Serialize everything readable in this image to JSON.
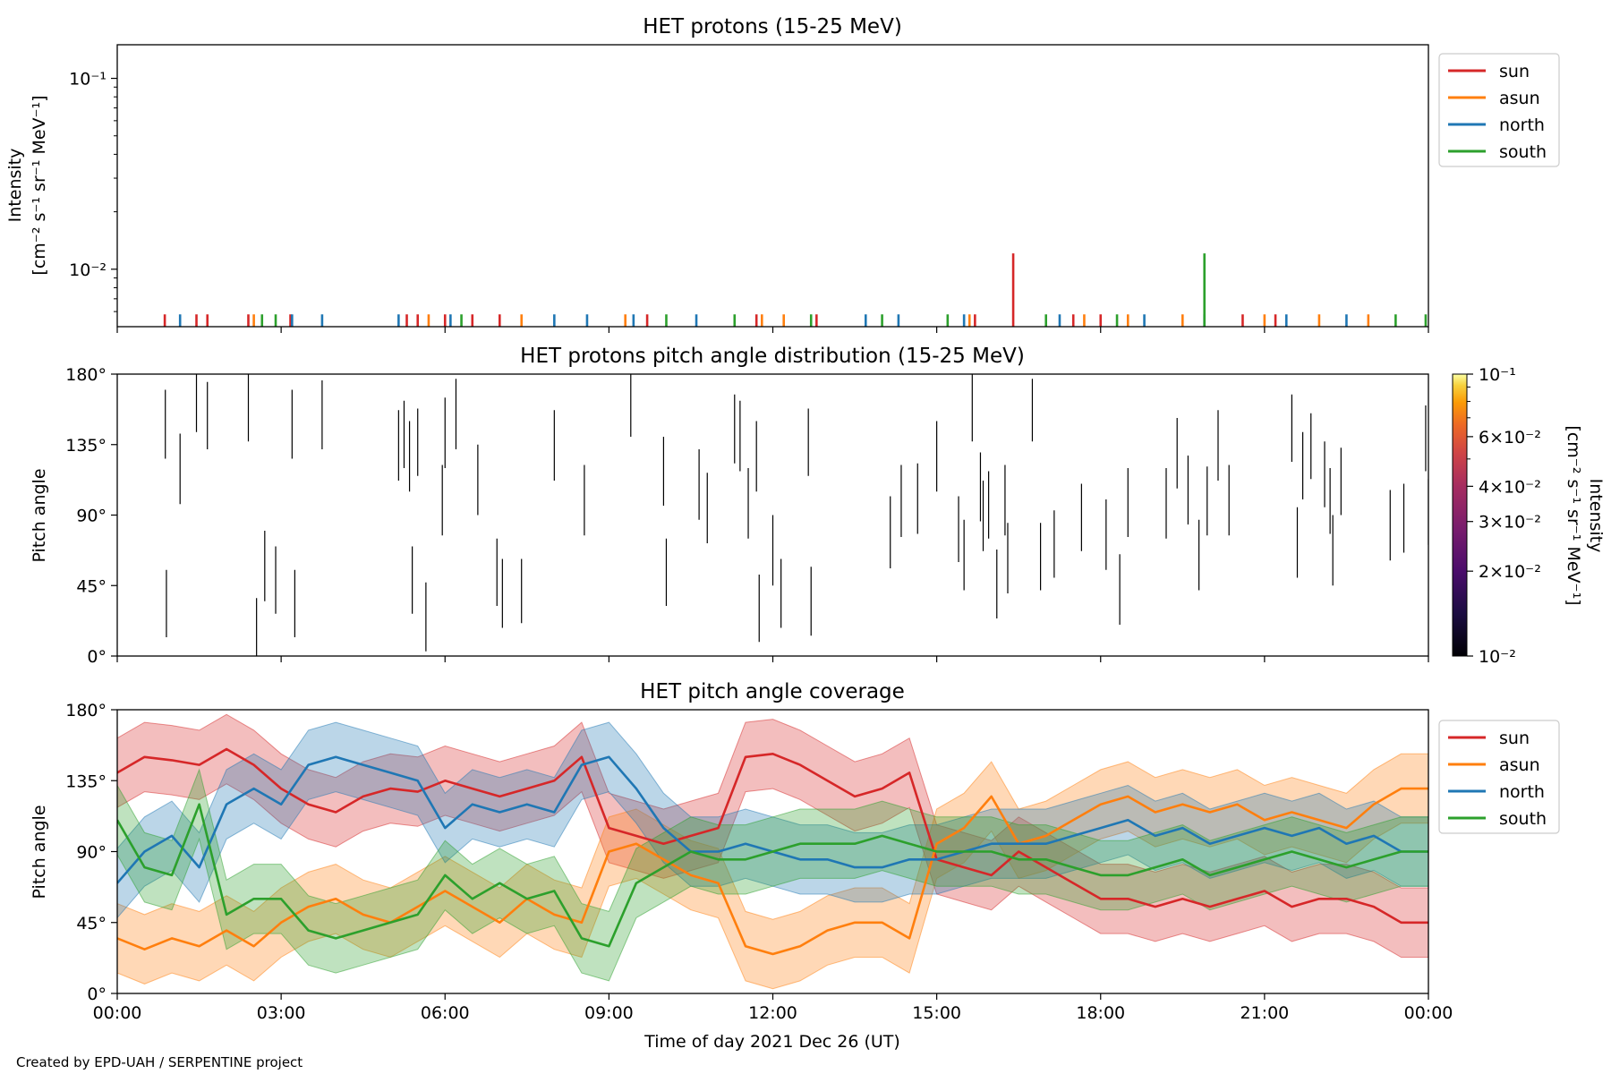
{
  "footer": "Created by EPD-UAH / SERPENTINE project",
  "x_axis": {
    "label": "Time of day 2021 Dec 26 (UT)",
    "ticks": [
      "00:00",
      "03:00",
      "06:00",
      "09:00",
      "12:00",
      "15:00",
      "18:00",
      "21:00",
      "00:00"
    ],
    "range_hours": [
      0,
      24
    ]
  },
  "colors": {
    "sun": "#d62728",
    "asun": "#ff7f0e",
    "north": "#1f77b4",
    "south": "#2ca02c"
  },
  "chart_data": [
    {
      "type": "line",
      "title": "HET protons (15-25 MeV)",
      "ylabel_line1": "Intensity",
      "ylabel_line2": "[cm⁻² s⁻¹ sr⁻¹ MeV⁻¹]",
      "yscale": "log",
      "ylim": [
        0.005,
        0.15
      ],
      "yticks": [
        "10⁻¹",
        "10⁻²"
      ],
      "legend": [
        "sun",
        "asun",
        "north",
        "south"
      ],
      "legend_position": "outside-right",
      "spikes_note": "sparse single-count spikes",
      "series": [
        {
          "name": "sun",
          "color": "#d62728",
          "peaks": [
            [
              0.87,
              0.0058
            ],
            [
              1.45,
              0.0058
            ],
            [
              1.65,
              0.0058
            ],
            [
              2.4,
              0.0058
            ],
            [
              3.17,
              0.0058
            ],
            [
              5.3,
              0.0058
            ],
            [
              5.5,
              0.0058
            ],
            [
              6.0,
              0.0058
            ],
            [
              6.5,
              0.0058
            ],
            [
              7.0,
              0.0058
            ],
            [
              9.7,
              0.0058
            ],
            [
              11.7,
              0.0058
            ],
            [
              12.8,
              0.0058
            ],
            [
              15.7,
              0.0058
            ],
            [
              16.4,
              0.0121
            ],
            [
              17.5,
              0.0058
            ],
            [
              18.0,
              0.0058
            ],
            [
              20.6,
              0.0058
            ],
            [
              21.2,
              0.0058
            ]
          ]
        },
        {
          "name": "asun",
          "color": "#ff7f0e",
          "peaks": [
            [
              2.5,
              0.0058
            ],
            [
              5.7,
              0.0058
            ],
            [
              7.4,
              0.0058
            ],
            [
              9.3,
              0.0058
            ],
            [
              11.8,
              0.0058
            ],
            [
              12.2,
              0.0058
            ],
            [
              15.6,
              0.0058
            ],
            [
              17.7,
              0.0058
            ],
            [
              18.5,
              0.0058
            ],
            [
              19.5,
              0.0058
            ],
            [
              21.0,
              0.0058
            ],
            [
              22.0,
              0.0058
            ],
            [
              22.9,
              0.0058
            ]
          ]
        },
        {
          "name": "north",
          "color": "#1f77b4",
          "peaks": [
            [
              1.15,
              0.0058
            ],
            [
              3.2,
              0.0058
            ],
            [
              3.75,
              0.0058
            ],
            [
              5.15,
              0.0058
            ],
            [
              6.1,
              0.0058
            ],
            [
              8.0,
              0.0058
            ],
            [
              8.6,
              0.0058
            ],
            [
              9.45,
              0.0058
            ],
            [
              10.6,
              0.0058
            ],
            [
              13.7,
              0.0058
            ],
            [
              14.3,
              0.0058
            ],
            [
              15.5,
              0.0058
            ],
            [
              17.25,
              0.0058
            ],
            [
              18.8,
              0.0058
            ],
            [
              19.9,
              0.0058
            ],
            [
              21.4,
              0.0058
            ],
            [
              22.5,
              0.0058
            ]
          ]
        },
        {
          "name": "south",
          "color": "#2ca02c",
          "peaks": [
            [
              2.65,
              0.0058
            ],
            [
              2.9,
              0.0058
            ],
            [
              6.3,
              0.0058
            ],
            [
              10.05,
              0.0058
            ],
            [
              11.3,
              0.0058
            ],
            [
              12.7,
              0.0058
            ],
            [
              14.0,
              0.0058
            ],
            [
              15.2,
              0.0058
            ],
            [
              17.0,
              0.0058
            ],
            [
              18.3,
              0.0058
            ],
            [
              19.9,
              0.0121
            ],
            [
              23.4,
              0.0058
            ],
            [
              23.95,
              0.0058
            ]
          ]
        }
      ]
    },
    {
      "type": "heatmap",
      "title": "HET protons pitch angle distribution (15-25 MeV)",
      "ylabel": "Pitch angle",
      "ylim": [
        0,
        180
      ],
      "yticks": [
        "0°",
        "45°",
        "90°",
        "135°",
        "180°"
      ],
      "colorbar": {
        "label_line1": "Intensity",
        "label_line2": "[cm⁻² s⁻¹ sr⁻¹ MeV⁻¹]",
        "scale": "log",
        "range": [
          0.01,
          0.1
        ],
        "ticks": [
          "10⁻¹",
          "6×10⁻²",
          "4×10⁻²",
          "3×10⁻²",
          "2×10⁻²",
          "10⁻²"
        ],
        "tick_values": [
          0.1,
          0.06,
          0.04,
          0.03,
          0.02,
          0.01
        ],
        "colormap": "inferno"
      },
      "segments": [
        [
          0.88,
          126,
          170
        ],
        [
          0.9,
          12,
          55
        ],
        [
          1.15,
          97,
          142
        ],
        [
          1.45,
          143,
          180
        ],
        [
          1.65,
          132,
          175
        ],
        [
          2.4,
          137,
          180
        ],
        [
          2.55,
          0,
          37
        ],
        [
          2.7,
          35,
          80
        ],
        [
          2.9,
          27,
          70
        ],
        [
          3.2,
          126,
          170
        ],
        [
          3.25,
          12,
          55
        ],
        [
          3.75,
          132,
          176
        ],
        [
          5.15,
          112,
          157
        ],
        [
          5.25,
          120,
          163
        ],
        [
          5.35,
          105,
          150
        ],
        [
          5.4,
          27,
          70
        ],
        [
          5.5,
          115,
          158
        ],
        [
          5.65,
          3,
          47
        ],
        [
          5.95,
          77,
          122
        ],
        [
          6.0,
          120,
          165
        ],
        [
          6.2,
          132,
          177
        ],
        [
          6.6,
          90,
          135
        ],
        [
          6.95,
          32,
          75
        ],
        [
          7.05,
          18,
          62
        ],
        [
          7.4,
          21,
          62
        ],
        [
          8.0,
          112,
          157
        ],
        [
          8.55,
          77,
          122
        ],
        [
          9.4,
          140,
          180
        ],
        [
          10.0,
          96,
          140
        ],
        [
          10.05,
          32,
          75
        ],
        [
          10.65,
          87,
          132
        ],
        [
          10.8,
          72,
          117
        ],
        [
          11.3,
          123,
          167
        ],
        [
          11.4,
          118,
          163
        ],
        [
          11.55,
          75,
          120
        ],
        [
          11.7,
          105,
          150
        ],
        [
          11.75,
          9,
          52
        ],
        [
          12.0,
          45,
          90
        ],
        [
          12.15,
          18,
          62
        ],
        [
          12.65,
          115,
          158
        ],
        [
          12.7,
          13,
          57
        ],
        [
          14.15,
          56,
          102
        ],
        [
          14.35,
          76,
          122
        ],
        [
          14.65,
          78,
          123
        ],
        [
          15.0,
          105,
          150
        ],
        [
          15.4,
          60,
          102
        ],
        [
          15.5,
          42,
          87
        ],
        [
          15.65,
          137,
          180
        ],
        [
          15.8,
          86,
          130
        ],
        [
          15.85,
          67,
          112
        ],
        [
          15.95,
          75,
          118
        ],
        [
          16.1,
          24,
          68
        ],
        [
          16.25,
          77,
          122
        ],
        [
          16.3,
          40,
          85
        ],
        [
          16.75,
          137,
          177
        ],
        [
          16.9,
          42,
          85
        ],
        [
          17.15,
          50,
          93
        ],
        [
          17.65,
          67,
          110
        ],
        [
          18.1,
          55,
          100
        ],
        [
          18.35,
          20,
          65
        ],
        [
          18.5,
          76,
          120
        ],
        [
          19.2,
          75,
          120
        ],
        [
          19.4,
          107,
          152
        ],
        [
          19.6,
          84,
          128
        ],
        [
          19.8,
          42,
          87
        ],
        [
          19.95,
          77,
          121
        ],
        [
          20.15,
          112,
          157
        ],
        [
          20.35,
          77,
          122
        ],
        [
          21.5,
          124,
          167
        ],
        [
          21.6,
          50,
          95
        ],
        [
          21.7,
          100,
          143
        ],
        [
          21.85,
          113,
          155
        ],
        [
          22.1,
          95,
          137
        ],
        [
          22.2,
          78,
          120
        ],
        [
          22.25,
          45,
          90
        ],
        [
          22.4,
          90,
          133
        ],
        [
          23.3,
          61,
          106
        ],
        [
          23.55,
          66,
          110
        ],
        [
          23.95,
          118,
          160
        ],
        [
          24.0,
          71,
          113
        ]
      ],
      "segment_fields": [
        "hour",
        "pitch_min",
        "pitch_max"
      ]
    },
    {
      "type": "area",
      "title": "HET pitch angle coverage",
      "ylabel": "Pitch angle",
      "ylim": [
        0,
        180
      ],
      "yticks": [
        "0°",
        "45°",
        "90°",
        "135°",
        "180°"
      ],
      "legend": [
        "sun",
        "asun",
        "north",
        "south"
      ],
      "legend_position": "outside-right",
      "band_halfwidth_deg": 22,
      "x_hours": [
        0,
        0.5,
        1,
        1.5,
        2,
        2.5,
        3,
        3.5,
        4,
        4.5,
        5,
        5.5,
        6,
        6.5,
        7,
        7.5,
        8,
        8.5,
        9,
        9.5,
        10,
        10.5,
        11,
        11.5,
        12,
        12.5,
        13,
        13.5,
        14,
        14.5,
        15,
        15.5,
        16,
        16.5,
        17,
        17.5,
        18,
        18.5,
        19,
        19.5,
        20,
        20.5,
        21,
        21.5,
        22,
        22.5,
        23,
        23.5,
        24
      ],
      "series": [
        {
          "name": "sun",
          "color": "#d62728",
          "values": [
            140,
            150,
            148,
            145,
            155,
            145,
            130,
            120,
            115,
            125,
            130,
            128,
            135,
            130,
            125,
            130,
            135,
            150,
            105,
            100,
            95,
            100,
            105,
            150,
            152,
            145,
            135,
            125,
            130,
            140,
            85,
            80,
            75,
            90,
            80,
            70,
            60,
            60,
            55,
            60,
            55,
            60,
            65,
            55,
            60,
            60,
            55,
            45,
            45
          ]
        },
        {
          "name": "asun",
          "color": "#ff7f0e",
          "values": [
            35,
            28,
            35,
            30,
            40,
            30,
            45,
            55,
            60,
            50,
            45,
            55,
            65,
            55,
            45,
            60,
            50,
            45,
            90,
            95,
            85,
            75,
            70,
            30,
            25,
            30,
            40,
            45,
            45,
            35,
            95,
            105,
            125,
            95,
            100,
            110,
            120,
            125,
            115,
            120,
            115,
            120,
            110,
            115,
            110,
            105,
            120,
            130,
            130
          ]
        },
        {
          "name": "north",
          "color": "#1f77b4",
          "values": [
            70,
            90,
            100,
            80,
            120,
            130,
            120,
            145,
            150,
            145,
            140,
            135,
            105,
            120,
            115,
            120,
            115,
            145,
            150,
            130,
            105,
            90,
            90,
            95,
            90,
            85,
            85,
            80,
            80,
            85,
            85,
            90,
            95,
            95,
            95,
            100,
            105,
            110,
            100,
            105,
            95,
            100,
            105,
            100,
            105,
            95,
            100,
            90,
            90
          ]
        },
        {
          "name": "south",
          "color": "#2ca02c",
          "values": [
            110,
            80,
            75,
            120,
            50,
            60,
            60,
            40,
            35,
            40,
            45,
            50,
            75,
            60,
            70,
            60,
            65,
            35,
            30,
            70,
            80,
            90,
            85,
            85,
            90,
            95,
            95,
            95,
            100,
            95,
            90,
            90,
            90,
            85,
            85,
            80,
            75,
            75,
            80,
            85,
            75,
            80,
            85,
            90,
            85,
            80,
            85,
            90,
            90
          ]
        }
      ]
    }
  ]
}
